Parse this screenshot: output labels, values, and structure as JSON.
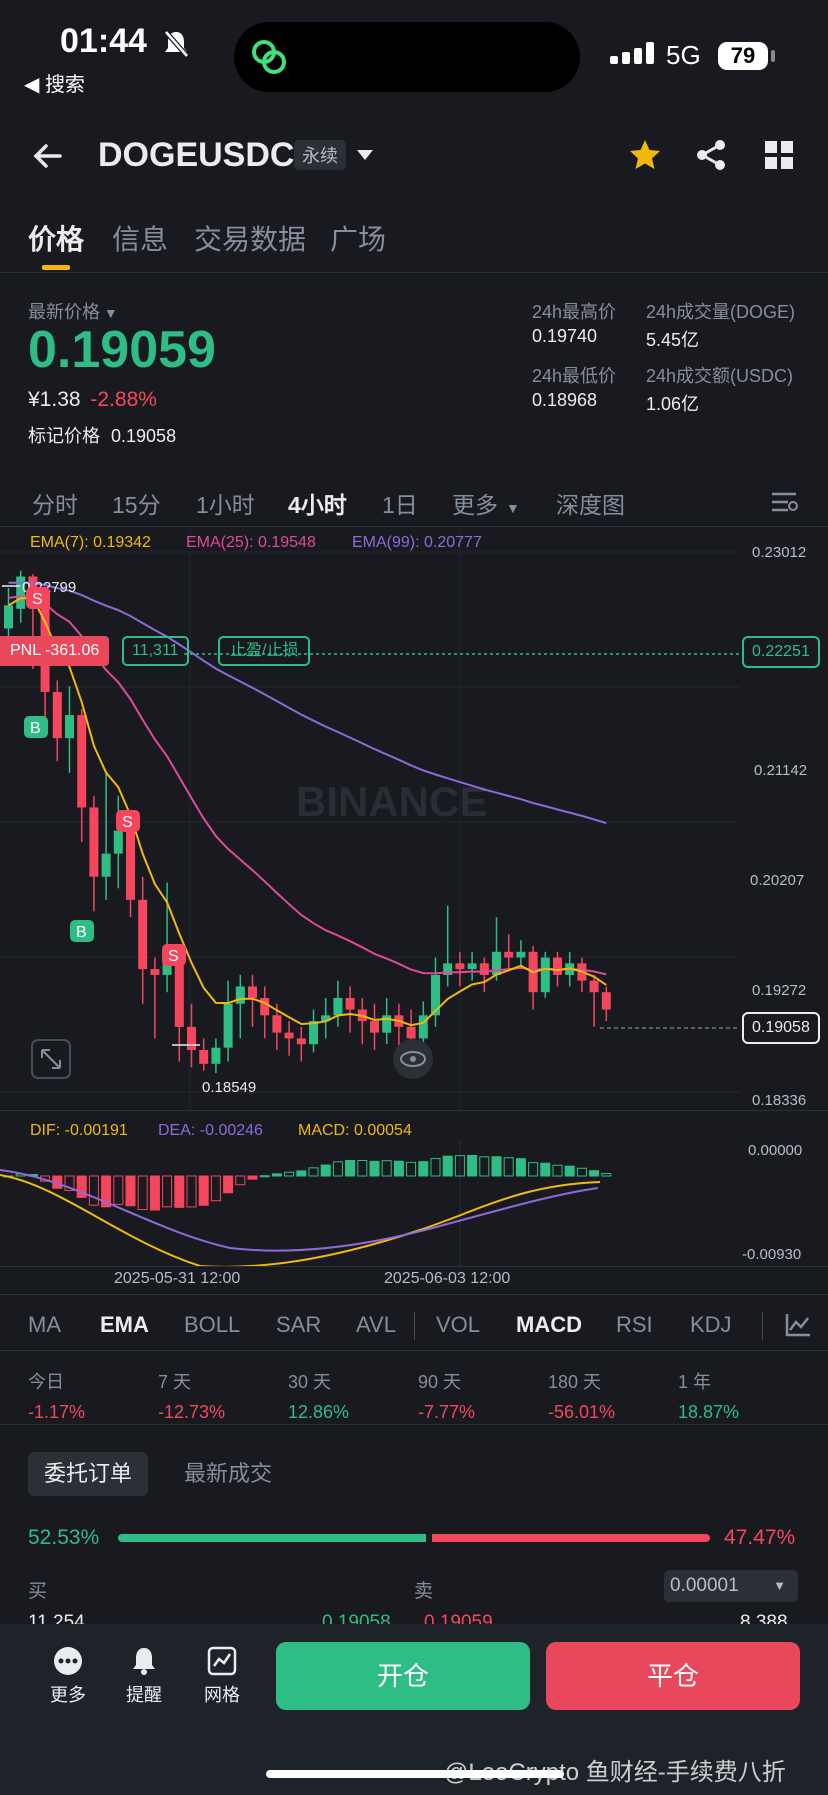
{
  "status_bar": {
    "time": "01:44",
    "back": "◀ 搜索",
    "network": "5G",
    "battery": "79"
  },
  "header": {
    "symbol": "DOGEUSDC",
    "contract_type": "永续"
  },
  "tabs": [
    {
      "label": "价格"
    },
    {
      "label": "信息"
    },
    {
      "label": "交易数据"
    },
    {
      "label": "广场"
    }
  ],
  "ticker": {
    "last_label": "最新价格",
    "last_price": "0.19059",
    "cny": "¥1.38",
    "change": "-2.88%",
    "mark_label": "标记价格",
    "mark_price": "0.19058",
    "high_label": "24h最高价",
    "high": "0.19740",
    "low_label": "24h最低价",
    "low": "0.18968",
    "vol_label": "24h成交量(DOGE)",
    "vol": "5.45亿",
    "amount_label": "24h成交额(USDC)",
    "amount": "1.06亿"
  },
  "timeframes": [
    "分时",
    "15分",
    "1小时",
    "4小时",
    "1日",
    "更多",
    "深度图"
  ],
  "ema": {
    "ema7": "EMA(7): 0.19342",
    "ema25": "EMA(25): 0.19548",
    "ema99": "EMA(99): 0.20777"
  },
  "watermark": "BINANCE",
  "position": {
    "pnl": "PNL -361.06",
    "qty": "11,311",
    "tpsl": "止盈/止损",
    "entry": "0.22251",
    "current": "0.19058"
  },
  "price_axis": [
    "0.23012",
    "0.21142",
    "0.20207",
    "0.19272",
    "0.18336"
  ],
  "marks": {
    "high": "0.22799",
    "low": "0.18549"
  },
  "macd": {
    "dif": "DIF: -0.00191",
    "dea": "DEA: -0.00246",
    "macd": "MACD: 0.00054",
    "axis_top": "0.00000",
    "axis_bottom": "-0.00930"
  },
  "time_axis": [
    "2025-05-31 12:00",
    "2025-06-03 12:00"
  ],
  "indicators": [
    "MA",
    "EMA",
    "BOLL",
    "SAR",
    "AVL",
    "VOL",
    "MACD",
    "RSI",
    "KDJ"
  ],
  "performance": [
    {
      "label": "今日",
      "value": "-1.17%"
    },
    {
      "label": "7 天",
      "value": "-12.73%"
    },
    {
      "label": "30 天",
      "value": "12.86%"
    },
    {
      "label": "90 天",
      "value": "-7.77%"
    },
    {
      "label": "180 天",
      "value": "-56.01%"
    },
    {
      "label": "1 年",
      "value": "18.87%"
    }
  ],
  "orders": {
    "tab_book": "委托订单",
    "tab_trades": "最新成交",
    "buy_pct": "52.53%",
    "sell_pct": "47.47%",
    "buy_ratio": 0.5253,
    "buy_label": "买",
    "sell_label": "卖",
    "precision": "0.00001",
    "row_buy_qty": "11,254",
    "row_buy_price": "0.19058",
    "row_sell_price": "0.19059",
    "row_sell_qty": "8,388"
  },
  "bottom": {
    "more": "更多",
    "alert": "提醒",
    "grid": "网格",
    "open": "开仓",
    "close": "平仓"
  },
  "footer_watermark": "@LeoCrypto 鱼财经-手续费八折",
  "chart_data": {
    "type": "candlestick",
    "ylim": [
      0.18336,
      0.23012
    ],
    "time_labels": [
      "2025-05-31 12:00",
      "2025-06-03 12:00"
    ],
    "candles": [
      [
        0.2235,
        0.2255,
        0.227,
        0.222
      ],
      [
        0.2252,
        0.228,
        0.2285,
        0.224
      ],
      [
        0.228,
        0.226,
        0.2282,
        0.22
      ],
      [
        0.226,
        0.218,
        0.2265,
        0.215
      ],
      [
        0.218,
        0.214,
        0.219,
        0.212
      ],
      [
        0.214,
        0.216,
        0.2185,
        0.211
      ],
      [
        0.216,
        0.208,
        0.2165,
        0.205
      ],
      [
        0.208,
        0.202,
        0.209,
        0.199
      ],
      [
        0.202,
        0.204,
        0.211,
        0.2
      ],
      [
        0.204,
        0.206,
        0.209,
        0.201
      ],
      [
        0.206,
        0.2,
        0.2075,
        0.1985
      ],
      [
        0.2,
        0.194,
        0.202,
        0.191
      ],
      [
        0.194,
        0.1935,
        0.195,
        0.188
      ],
      [
        0.1935,
        0.195,
        0.2015,
        0.192
      ],
      [
        0.195,
        0.189,
        0.1955,
        0.186
      ],
      [
        0.189,
        0.187,
        0.191,
        0.1855
      ],
      [
        0.187,
        0.1858,
        0.188,
        0.1852
      ],
      [
        0.1858,
        0.1872,
        0.188,
        0.185
      ],
      [
        0.1872,
        0.191,
        0.193,
        0.186
      ],
      [
        0.191,
        0.1925,
        0.1935,
        0.188
      ],
      [
        0.1925,
        0.1915,
        0.1935,
        0.189
      ],
      [
        0.1915,
        0.19,
        0.1925,
        0.188
      ],
      [
        0.19,
        0.1885,
        0.191,
        0.187
      ],
      [
        0.1885,
        0.188,
        0.1895,
        0.1865
      ],
      [
        0.188,
        0.1875,
        0.189,
        0.186
      ],
      [
        0.1875,
        0.1895,
        0.1905,
        0.1868
      ],
      [
        0.1895,
        0.19,
        0.1915,
        0.188
      ],
      [
        0.19,
        0.1915,
        0.193,
        0.189
      ],
      [
        0.1915,
        0.1905,
        0.1925,
        0.1885
      ],
      [
        0.1905,
        0.1895,
        0.1915,
        0.1875
      ],
      [
        0.1895,
        0.1885,
        0.191,
        0.187
      ],
      [
        0.1885,
        0.19,
        0.1915,
        0.1875
      ],
      [
        0.19,
        0.189,
        0.191,
        0.1872
      ],
      [
        0.189,
        0.188,
        0.1905,
        0.187
      ],
      [
        0.188,
        0.19,
        0.1912,
        0.1872
      ],
      [
        0.19,
        0.1935,
        0.195,
        0.189
      ],
      [
        0.1935,
        0.1945,
        0.1995,
        0.1925
      ],
      [
        0.1945,
        0.194,
        0.1955,
        0.1925
      ],
      [
        0.194,
        0.1945,
        0.1955,
        0.193
      ],
      [
        0.1945,
        0.1935,
        0.195,
        0.192
      ],
      [
        0.1935,
        0.1955,
        0.1985,
        0.193
      ],
      [
        0.1955,
        0.195,
        0.197,
        0.194
      ],
      [
        0.195,
        0.1955,
        0.1965,
        0.194
      ],
      [
        0.1955,
        0.192,
        0.196,
        0.1905
      ],
      [
        0.192,
        0.195,
        0.1955,
        0.1915
      ],
      [
        0.195,
        0.1935,
        0.1955,
        0.1925
      ],
      [
        0.1935,
        0.1945,
        0.1955,
        0.1925
      ],
      [
        0.1945,
        0.193,
        0.195,
        0.192
      ],
      [
        0.193,
        0.192,
        0.1935,
        0.189
      ],
      [
        0.192,
        0.1905,
        0.1925,
        0.1895
      ]
    ]
  }
}
